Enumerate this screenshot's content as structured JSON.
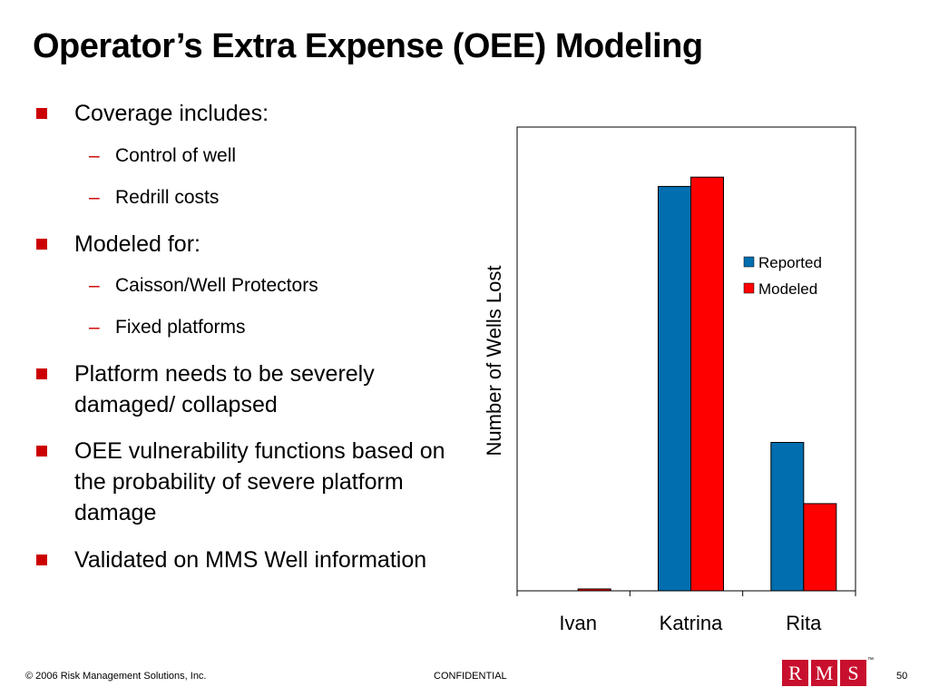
{
  "title": "Operator’s Extra Expense (OEE) Modeling",
  "bullets": [
    {
      "level": 1,
      "text": "Coverage includes:"
    },
    {
      "level": 2,
      "text": "Control of well"
    },
    {
      "level": 2,
      "text": "Redrill costs"
    },
    {
      "level": 1,
      "text": "Modeled for:"
    },
    {
      "level": 2,
      "text": "Caisson/Well Protectors"
    },
    {
      "level": 2,
      "text": "Fixed platforms"
    },
    {
      "level": 1,
      "text": "Platform needs to be severely damaged/ collapsed"
    },
    {
      "level": 1,
      "text": "OEE vulnerability functions based on the probability of severe platform damage"
    },
    {
      "level": 1,
      "text": "Validated on MMS Well information"
    }
  ],
  "footer": {
    "copyright": "© 2006 Risk Management Solutions, Inc.",
    "confidential": "CONFIDENTIAL",
    "logo": [
      "R",
      "M",
      "S"
    ],
    "trademark": "™",
    "page": "50"
  },
  "chart_data": {
    "type": "bar",
    "y_label": "Number of Wells Lost",
    "categories": [
      "Ivan",
      "Katrina",
      "Rita"
    ],
    "series": [
      {
        "name": "Reported",
        "color": "#006eaf",
        "values": [
          0,
          218,
          80
        ]
      },
      {
        "name": "Modeled",
        "color": "#ff0000",
        "values": [
          1,
          223,
          47
        ]
      }
    ],
    "ylim": [
      0,
      250
    ],
    "legend": "right"
  }
}
